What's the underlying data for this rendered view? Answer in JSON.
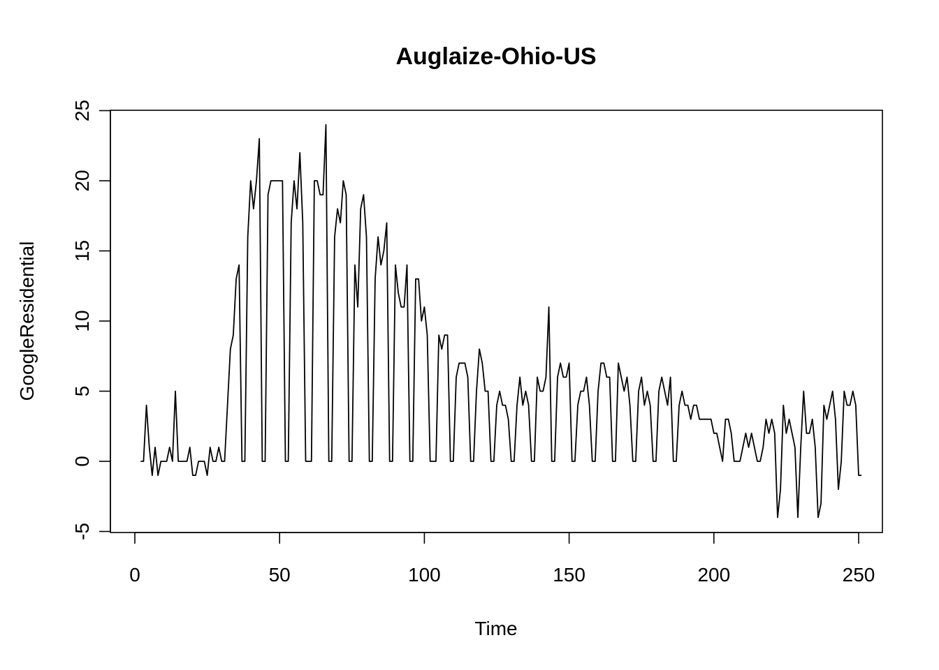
{
  "chart_data": {
    "type": "line",
    "title": "Auglaize-Ohio-US",
    "xlabel": "Time",
    "ylabel": "GoogleResidential",
    "xlim": [
      -8.9,
      256.9
    ],
    "ylim": [
      -5,
      25
    ],
    "x_ticks": [
      0,
      50,
      100,
      150,
      200,
      250
    ],
    "y_ticks": [
      -5,
      0,
      5,
      10,
      15,
      20,
      25
    ],
    "x_tick_labels": [
      "0",
      "50",
      "100",
      "150",
      "200",
      "250"
    ],
    "y_tick_labels": [
      "-5",
      "0",
      "5",
      "10",
      "15",
      "20",
      "25"
    ],
    "grid": false,
    "series": [
      {
        "x_start": 2,
        "values": [
          0,
          0,
          4,
          1,
          -1,
          1,
          -1,
          0,
          0,
          0,
          1,
          0,
          5,
          0,
          0,
          0,
          0,
          1,
          -1,
          -1,
          0,
          0,
          0,
          -1,
          1,
          0,
          0,
          1,
          0,
          0,
          4,
          8,
          9,
          13,
          14,
          0,
          0,
          16,
          20,
          18,
          20,
          23,
          0,
          0,
          19,
          20,
          20,
          20,
          20,
          20,
          0,
          0,
          17,
          20,
          18,
          22,
          17,
          0,
          0,
          0,
          20,
          20,
          19,
          19,
          24,
          0,
          0,
          16,
          18,
          17,
          20,
          19,
          0,
          0,
          14,
          11,
          18,
          19,
          16,
          0,
          0,
          13,
          16,
          14,
          15,
          17,
          0,
          0,
          14,
          12,
          11,
          11,
          14,
          0,
          0,
          13,
          13,
          10,
          11,
          9,
          0,
          0,
          0,
          9,
          8,
          9,
          9,
          0,
          0,
          6,
          7,
          7,
          7,
          6,
          0,
          0,
          5,
          8,
          7,
          5,
          5,
          0,
          0,
          4,
          5,
          4,
          4,
          3,
          0,
          0,
          4,
          6,
          4,
          5,
          4,
          0,
          0,
          6,
          5,
          5,
          6,
          11,
          0,
          0,
          6,
          7,
          6,
          6,
          7,
          0,
          0,
          4,
          5,
          5,
          6,
          4,
          0,
          0,
          5,
          7,
          7,
          6,
          6,
          0,
          0,
          7,
          6,
          5,
          6,
          4,
          0,
          0,
          5,
          6,
          4,
          5,
          4,
          0,
          0,
          5,
          6,
          5,
          4,
          6,
          0,
          0,
          4,
          5,
          4,
          4,
          3,
          4,
          4,
          3,
          3,
          3,
          3,
          3,
          2,
          2,
          1,
          0,
          3,
          3,
          2,
          0,
          0,
          0,
          1,
          2,
          1,
          2,
          1,
          0,
          0,
          1,
          3,
          2,
          3,
          2,
          -4,
          -2,
          4,
          2,
          3,
          2,
          1,
          -4,
          1,
          5,
          2,
          2,
          3,
          1,
          -4,
          -3,
          4,
          3,
          4,
          5,
          3,
          -2,
          0,
          5,
          4,
          4,
          5,
          4,
          -1,
          -1
        ]
      }
    ]
  }
}
